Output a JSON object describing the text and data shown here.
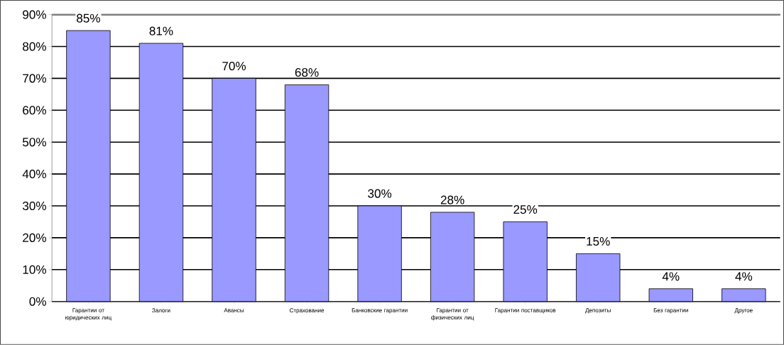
{
  "chart_data": {
    "type": "bar",
    "categories": [
      "Гарантии от юридических лиц",
      "Залоги",
      "Авансы",
      "Страхование",
      "Банковские гарантии",
      "Гарантии от физических лиц",
      "Гарантии поставщиков",
      "Депозиты",
      "Без гарантии",
      "Другое"
    ],
    "values": [
      85,
      81,
      70,
      68,
      30,
      28,
      25,
      15,
      4,
      4
    ],
    "value_labels": [
      "85%",
      "81%",
      "70%",
      "68%",
      "30%",
      "28%",
      "25%",
      "15%",
      "4%",
      "4%"
    ],
    "color": "#9999ff",
    "ylim": [
      0,
      90
    ],
    "yticks": [
      {
        "value": 0,
        "label": "0%"
      },
      {
        "value": 10,
        "label": "10%"
      },
      {
        "value": 20,
        "label": "20%"
      },
      {
        "value": 30,
        "label": "30%"
      },
      {
        "value": 40,
        "label": "40%"
      },
      {
        "value": 50,
        "label": "50%"
      },
      {
        "value": 60,
        "label": "60%"
      },
      {
        "value": 70,
        "label": "70%"
      },
      {
        "value": 80,
        "label": "80%"
      },
      {
        "value": 90,
        "label": "90%"
      }
    ],
    "grid": "y"
  }
}
